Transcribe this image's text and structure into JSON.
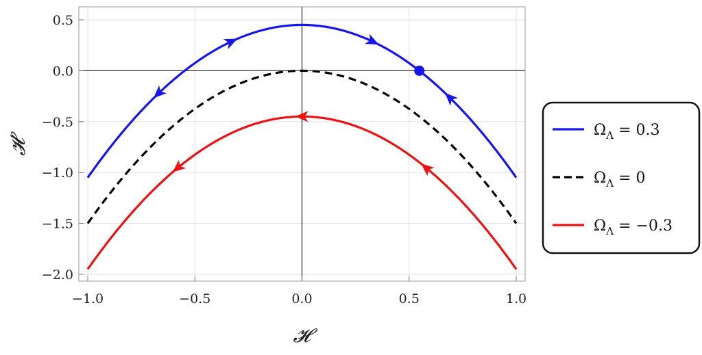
{
  "chart_data": {
    "type": "line",
    "xlabel": "𝓗",
    "ylabel": "𝓗′",
    "xlim": [
      -1.0,
      1.0
    ],
    "ylim": [
      -2.05,
      0.55
    ],
    "x_ticks": [
      "−1.0",
      "−0.5",
      "0.0",
      "0.5",
      "1.0"
    ],
    "x_tick_values": [
      -1.0,
      -0.5,
      0.0,
      0.5,
      1.0
    ],
    "y_ticks": [
      "0.5",
      "0.0",
      "−0.5",
      "−1.0",
      "−1.5",
      "−2.0"
    ],
    "y_tick_values": [
      0.5,
      0.0,
      -0.5,
      -1.0,
      -1.5,
      -2.0
    ],
    "grid": true,
    "legend_position": "right",
    "series": [
      {
        "name": "Ω_Λ = 0.3",
        "legend_label": "ΩΛ = 0.3",
        "color": "#1515ee",
        "dash": "solid",
        "omega": 0.3,
        "x_range": [
          -1.0,
          1.0
        ],
        "y_endpoints": [
          -1.05,
          -1.05
        ],
        "y_peak": 0.45,
        "fixed_point": {
          "x": 0.548,
          "y": 0.0
        },
        "arrows": [
          {
            "x": -0.33,
            "direction": "right"
          },
          {
            "x": 0.33,
            "direction": "right"
          },
          {
            "x": -0.67,
            "direction": "left"
          },
          {
            "x": 0.69,
            "direction": "left"
          }
        ]
      },
      {
        "name": "Ω_Λ = 0",
        "legend_label": "ΩΛ = 0",
        "color": "#000000",
        "dash": "dashed",
        "omega": 0.0,
        "x_range": [
          -1.0,
          1.0
        ],
        "y_endpoints": [
          -1.5,
          -1.5
        ],
        "y_peak": 0.0,
        "arrows": []
      },
      {
        "name": "Ω_Λ = −0.3",
        "legend_label": "ΩΛ = −0.3",
        "color": "#ee1111",
        "dash": "solid",
        "omega": -0.3,
        "x_range": [
          -1.0,
          1.0
        ],
        "y_endpoints": [
          -1.95,
          -1.95
        ],
        "y_peak": -0.45,
        "arrows": [
          {
            "x": 0.0,
            "direction": "left"
          },
          {
            "x": -0.58,
            "direction": "left"
          },
          {
            "x": 0.58,
            "direction": "left"
          }
        ]
      }
    ]
  },
  "legend": {
    "items": [
      {
        "prefix": "Ω",
        "sub": "Λ",
        "value": " = 0.3"
      },
      {
        "prefix": "Ω",
        "sub": "Λ",
        "value": " = 0"
      },
      {
        "prefix": "Ω",
        "sub": "Λ",
        "value": " = −0.3"
      }
    ]
  }
}
